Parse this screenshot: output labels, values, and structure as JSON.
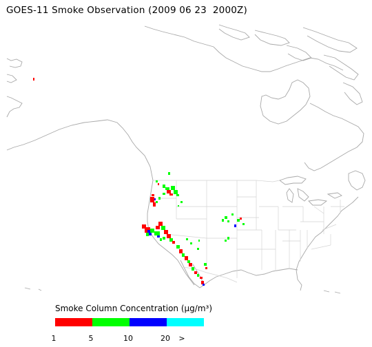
{
  "title": "GOES-11 Smoke Observation (2009 06 23  2000Z)",
  "legend": {
    "title_prefix": "Smoke Column Concentration (",
    "title_unit": "µg/m³",
    "title_suffix": ")",
    "ticks": [
      "1",
      "5",
      "10",
      "20",
      ">"
    ],
    "colors": [
      "#ff0000",
      "#00ff00",
      "#0000ff",
      "#00ffff"
    ]
  },
  "map_colors": {
    "coastline": "#a8a8a8",
    "state_lines": "#d0d0d0",
    "smoke_low": "#ff0000",
    "smoke_mid": "#00ff00",
    "smoke_high": "#0000ff",
    "smoke_max": "#00ffff"
  }
}
